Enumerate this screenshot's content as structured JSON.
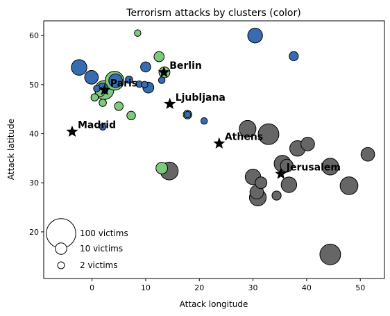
{
  "chart_data": {
    "type": "scatter",
    "title": "Terrorism attacks by clusters (color)",
    "xlabel": "Attack longitude",
    "ylabel": "Attack latitude",
    "xlim": [
      -9,
      54.5
    ],
    "ylim": [
      10.5,
      63
    ],
    "xticks": [
      0,
      10,
      20,
      30,
      40,
      50
    ],
    "yticks": [
      20,
      30,
      40,
      50,
      60
    ],
    "grid": false,
    "colors": {
      "green": "#7fc97f",
      "blue": "#386cb0",
      "gray": "#666666",
      "edge": "#000000",
      "star": "#000000"
    },
    "legend": {
      "placement": "lower-left",
      "entries": [
        {
          "label": "100 victims",
          "victims": 100
        },
        {
          "label": "10 victims",
          "victims": 10
        },
        {
          "label": "2 victims",
          "victims": 2
        }
      ]
    },
    "cities": [
      {
        "name": "Berlin",
        "lon": 13.4,
        "lat": 52.5
      },
      {
        "name": "Paris",
        "lon": 2.35,
        "lat": 48.9
      },
      {
        "name": "Ljubljana",
        "lon": 14.5,
        "lat": 46.05
      },
      {
        "name": "Madrid",
        "lon": -3.7,
        "lat": 40.4
      },
      {
        "name": "Athens",
        "lon": 23.7,
        "lat": 38.0
      },
      {
        "name": "Jerusalem",
        "lon": 35.2,
        "lat": 31.8
      }
    ],
    "points": [
      {
        "c": "green",
        "x": 8.5,
        "y": 60.5,
        "v": 2
      },
      {
        "c": "green",
        "x": 12.5,
        "y": 55.7,
        "v": 8
      },
      {
        "c": "green",
        "x": 13.5,
        "y": 52.5,
        "v": 10
      },
      {
        "c": "green",
        "x": 2.3,
        "y": 48.9,
        "v": 40
      },
      {
        "c": "green",
        "x": 4.2,
        "y": 50.8,
        "v": 40
      },
      {
        "c": "green",
        "x": 1.5,
        "y": 48.5,
        "v": 6
      },
      {
        "c": "green",
        "x": 0.5,
        "y": 47.4,
        "v": 3
      },
      {
        "c": "green",
        "x": 2.0,
        "y": 46.3,
        "v": 3
      },
      {
        "c": "green",
        "x": 5.0,
        "y": 45.6,
        "v": 5
      },
      {
        "c": "green",
        "x": 7.3,
        "y": 43.7,
        "v": 5
      },
      {
        "c": "green",
        "x": 17.8,
        "y": 43.9,
        "v": 5
      },
      {
        "c": "green",
        "x": 13.0,
        "y": 33.0,
        "v": 12
      },
      {
        "c": "blue",
        "x": 30.4,
        "y": 60.0,
        "v": 22
      },
      {
        "c": "blue",
        "x": 37.6,
        "y": 55.8,
        "v": 6
      },
      {
        "c": "blue",
        "x": -2.4,
        "y": 53.5,
        "v": 25
      },
      {
        "c": "blue",
        "x": -0.1,
        "y": 51.5,
        "v": 18
      },
      {
        "c": "blue",
        "x": 4.4,
        "y": 50.8,
        "v": 18
      },
      {
        "c": "blue",
        "x": 10.0,
        "y": 53.6,
        "v": 8
      },
      {
        "c": "blue",
        "x": 10.5,
        "y": 49.4,
        "v": 10
      },
      {
        "c": "blue",
        "x": 2.0,
        "y": 49.2,
        "v": 10
      },
      {
        "c": "blue",
        "x": 6.9,
        "y": 51.0,
        "v": 3
      },
      {
        "c": "blue",
        "x": 8.8,
        "y": 50.1,
        "v": 2
      },
      {
        "c": "blue",
        "x": 9.8,
        "y": 50.0,
        "v": 2
      },
      {
        "c": "blue",
        "x": 13.0,
        "y": 50.9,
        "v": 2
      },
      {
        "c": "blue",
        "x": 0.9,
        "y": 49.2,
        "v": 2
      },
      {
        "c": "blue",
        "x": 2.0,
        "y": 41.4,
        "v": 2
      },
      {
        "c": "blue",
        "x": 20.9,
        "y": 42.6,
        "v": 2
      },
      {
        "c": "blue",
        "x": 17.8,
        "y": 43.9,
        "v": 2
      },
      {
        "c": "gray",
        "x": 29.0,
        "y": 41.0,
        "v": 30
      },
      {
        "c": "gray",
        "x": 32.9,
        "y": 39.9,
        "v": 50
      },
      {
        "c": "gray",
        "x": 38.3,
        "y": 37.0,
        "v": 25
      },
      {
        "c": "gray",
        "x": 40.2,
        "y": 37.9,
        "v": 18
      },
      {
        "c": "gray",
        "x": 51.4,
        "y": 35.8,
        "v": 18
      },
      {
        "c": "gray",
        "x": 35.5,
        "y": 33.9,
        "v": 30
      },
      {
        "c": "gray",
        "x": 44.4,
        "y": 33.3,
        "v": 30
      },
      {
        "c": "gray",
        "x": 30.0,
        "y": 31.2,
        "v": 25
      },
      {
        "c": "gray",
        "x": 36.3,
        "y": 33.5,
        "v": 15
      },
      {
        "c": "gray",
        "x": 36.7,
        "y": 29.6,
        "v": 25
      },
      {
        "c": "gray",
        "x": 30.7,
        "y": 28.1,
        "v": 18
      },
      {
        "c": "gray",
        "x": 31.5,
        "y": 30.0,
        "v": 12
      },
      {
        "c": "gray",
        "x": 30.9,
        "y": 27.0,
        "v": 30
      },
      {
        "c": "gray",
        "x": 34.4,
        "y": 27.4,
        "v": 6
      },
      {
        "c": "gray",
        "x": 47.9,
        "y": 29.4,
        "v": 35
      },
      {
        "c": "gray",
        "x": 44.4,
        "y": 15.4,
        "v": 50
      },
      {
        "c": "gray",
        "x": 14.4,
        "y": 32.4,
        "v": 35
      }
    ]
  }
}
